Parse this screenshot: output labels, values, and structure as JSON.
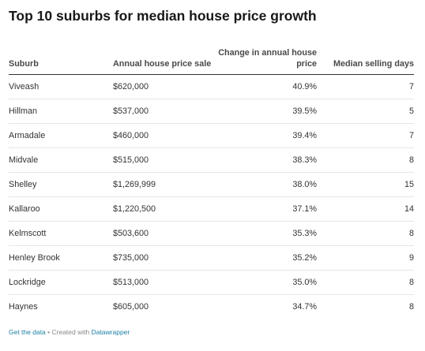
{
  "title": "Top 10 suburbs for median house price growth",
  "chart_data": {
    "type": "table",
    "title": "Top 10 suburbs for median house price growth",
    "columns": [
      "Suburb",
      "Annual house price sale",
      "Change in annual house price",
      "Median selling days"
    ],
    "rows": [
      [
        "Viveash",
        "$620,000",
        "40.9%",
        "7"
      ],
      [
        "Hillman",
        "$537,000",
        "39.5%",
        "5"
      ],
      [
        "Armadale",
        "$460,000",
        "39.4%",
        "7"
      ],
      [
        "Midvale",
        "$515,000",
        "38.3%",
        "8"
      ],
      [
        "Shelley",
        "$1,269,999",
        "38.0%",
        "15"
      ],
      [
        "Kallaroo",
        "$1,220,500",
        "37.1%",
        "14"
      ],
      [
        "Kelmscott",
        "$503,600",
        "35.3%",
        "8"
      ],
      [
        "Henley Brook",
        "$735,000",
        "35.2%",
        "9"
      ],
      [
        "Lockridge",
        "$513,000",
        "35.0%",
        "8"
      ],
      [
        "Haynes",
        "$605,000",
        "34.7%",
        "8"
      ]
    ]
  },
  "footer": {
    "get_data_label": "Get the data",
    "separator": " • Created with ",
    "tool_label": "Datawrapper"
  },
  "colors": {
    "title": "#181818",
    "text": "#333333",
    "link": "#1d81a2",
    "rule": "#e6e6e6"
  }
}
